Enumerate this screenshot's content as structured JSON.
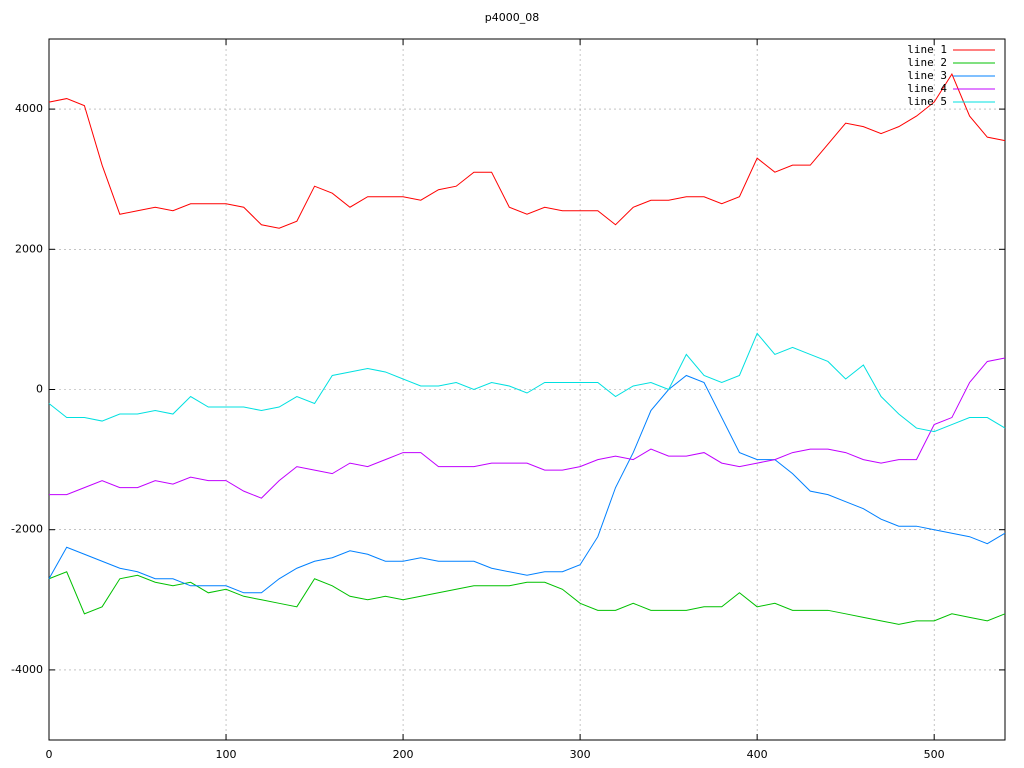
{
  "chart_data": {
    "type": "line",
    "title": "p4000_08",
    "x": [
      0,
      10,
      20,
      30,
      40,
      50,
      60,
      70,
      80,
      90,
      100,
      110,
      120,
      130,
      140,
      150,
      160,
      170,
      180,
      190,
      200,
      210,
      220,
      230,
      240,
      250,
      260,
      270,
      280,
      290,
      300,
      310,
      320,
      330,
      340,
      350,
      360,
      370,
      380,
      390,
      400,
      410,
      420,
      430,
      440,
      450,
      460,
      470,
      480,
      490,
      500,
      510,
      520,
      530,
      540
    ],
    "series": [
      {
        "name": "line 1",
        "color": "#ff0000",
        "values": [
          4100,
          4150,
          4050,
          3200,
          2500,
          2550,
          2600,
          2550,
          2650,
          2650,
          2650,
          2600,
          2350,
          2300,
          2400,
          2900,
          2800,
          2600,
          2750,
          2750,
          2750,
          2700,
          2850,
          2900,
          3100,
          3100,
          2600,
          2500,
          2600,
          2550,
          2550,
          2550,
          2350,
          2600,
          2700,
          2700,
          2750,
          2750,
          2650,
          2750,
          3300,
          3100,
          3200,
          3200,
          3500,
          3800,
          3750,
          3650,
          3750,
          3900,
          4100,
          4500,
          3900,
          3600,
          3550
        ]
      },
      {
        "name": "line 2",
        "color": "#00c000",
        "values": [
          -2700,
          -2600,
          -3200,
          -3100,
          -2700,
          -2650,
          -2750,
          -2800,
          -2750,
          -2900,
          -2850,
          -2950,
          -3000,
          -3050,
          -3100,
          -2700,
          -2800,
          -2950,
          -3000,
          -2950,
          -3000,
          -2950,
          -2900,
          -2850,
          -2800,
          -2800,
          -2800,
          -2750,
          -2750,
          -2850,
          -3050,
          -3150,
          -3150,
          -3050,
          -3150,
          -3150,
          -3150,
          -3100,
          -3100,
          -2900,
          -3100,
          -3050,
          -3150,
          -3150,
          -3150,
          -3200,
          -3250,
          -3300,
          -3350,
          -3300,
          -3300,
          -3200,
          -3250,
          -3300,
          -3200
        ]
      },
      {
        "name": "line 3",
        "color": "#0080ff",
        "values": [
          -2700,
          -2250,
          -2350,
          -2450,
          -2550,
          -2600,
          -2700,
          -2700,
          -2800,
          -2800,
          -2800,
          -2900,
          -2900,
          -2700,
          -2550,
          -2450,
          -2400,
          -2300,
          -2350,
          -2450,
          -2450,
          -2400,
          -2450,
          -2450,
          -2450,
          -2550,
          -2600,
          -2650,
          -2600,
          -2600,
          -2500,
          -2100,
          -1400,
          -900,
          -300,
          0,
          200,
          100,
          -400,
          -900,
          -1000,
          -1000,
          -1200,
          -1450,
          -1500,
          -1600,
          -1700,
          -1850,
          -1950,
          -1950,
          -2000,
          -2050,
          -2100,
          -2200,
          -2050
        ]
      },
      {
        "name": "line 4",
        "color": "#c000ff",
        "values": [
          -1500,
          -1500,
          -1400,
          -1300,
          -1400,
          -1400,
          -1300,
          -1350,
          -1250,
          -1300,
          -1300,
          -1450,
          -1550,
          -1300,
          -1100,
          -1150,
          -1200,
          -1050,
          -1100,
          -1000,
          -900,
          -900,
          -1100,
          -1100,
          -1100,
          -1050,
          -1050,
          -1050,
          -1150,
          -1150,
          -1100,
          -1000,
          -950,
          -1000,
          -850,
          -950,
          -950,
          -900,
          -1050,
          -1100,
          -1050,
          -1000,
          -900,
          -850,
          -850,
          -900,
          -1000,
          -1050,
          -1000,
          -1000,
          -500,
          -400,
          100,
          400,
          450
        ]
      },
      {
        "name": "line 5",
        "color": "#00e0e0",
        "values": [
          -200,
          -400,
          -400,
          -450,
          -350,
          -350,
          -300,
          -350,
          -100,
          -250,
          -250,
          -250,
          -300,
          -250,
          -100,
          -200,
          200,
          250,
          300,
          250,
          150,
          50,
          50,
          100,
          0,
          100,
          50,
          -50,
          100,
          100,
          100,
          100,
          -100,
          50,
          100,
          0,
          500,
          200,
          100,
          200,
          800,
          500,
          600,
          500,
          400,
          150,
          350,
          -100,
          -350,
          -550,
          -600,
          -500,
          -400,
          -400,
          -550
        ]
      }
    ],
    "xlim": [
      0,
      540
    ],
    "ylim": [
      -5000,
      5000
    ],
    "xticks": [
      0,
      100,
      200,
      300,
      400,
      500
    ],
    "yticks": [
      -4000,
      -2000,
      0,
      2000,
      4000
    ],
    "grid": true,
    "legend": "top-right"
  }
}
